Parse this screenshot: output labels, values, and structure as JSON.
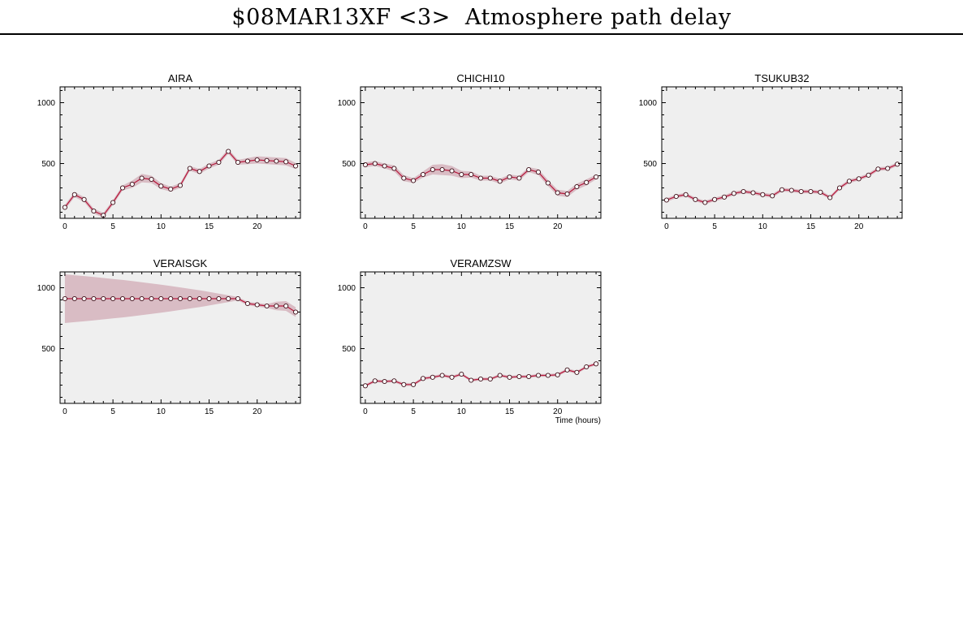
{
  "title": "$08MAR13XF <3>  Atmosphere path delay",
  "colors": {
    "background": "#ffffff",
    "plot_bg": "#efefef",
    "line": "#b8163a",
    "band": "#d9bcc4",
    "marker_fill": "#ffffff",
    "axis": "#000000"
  },
  "chart_data": [
    {
      "type": "line",
      "title": "AIRA",
      "xlabel": "",
      "ylabel": "",
      "xlim": [
        -0.5,
        24.5
      ],
      "ylim": [
        50,
        1130
      ],
      "xticks": [
        0,
        5,
        10,
        15,
        20
      ],
      "yticks": [
        500,
        1000
      ],
      "x": [
        0,
        1,
        2,
        3,
        4,
        5,
        6,
        7,
        8,
        9,
        10,
        11,
        12,
        13,
        14,
        15,
        16,
        17,
        18,
        19,
        20,
        21,
        22,
        23,
        24
      ],
      "y": [
        140,
        245,
        205,
        110,
        75,
        180,
        300,
        330,
        380,
        370,
        315,
        290,
        320,
        460,
        435,
        480,
        510,
        600,
        510,
        520,
        530,
        525,
        520,
        515,
        480
      ],
      "band": [
        20,
        20,
        20,
        20,
        20,
        20,
        20,
        30,
        35,
        30,
        25,
        20,
        20,
        20,
        20,
        20,
        20,
        20,
        20,
        25,
        30,
        30,
        30,
        30,
        25
      ]
    },
    {
      "type": "line",
      "title": "CHICHI10",
      "xlabel": "",
      "ylabel": "",
      "xlim": [
        -0.5,
        24.5
      ],
      "ylim": [
        50,
        1130
      ],
      "xticks": [
        0,
        5,
        10,
        15,
        20
      ],
      "yticks": [
        500,
        1000
      ],
      "x": [
        0,
        1,
        2,
        3,
        4,
        5,
        6,
        7,
        8,
        9,
        10,
        11,
        12,
        13,
        14,
        15,
        16,
        17,
        18,
        19,
        20,
        21,
        22,
        23,
        24
      ],
      "y": [
        490,
        500,
        480,
        460,
        380,
        360,
        410,
        450,
        450,
        440,
        410,
        410,
        380,
        380,
        355,
        390,
        380,
        450,
        430,
        340,
        260,
        250,
        310,
        345,
        390
      ],
      "band": [
        20,
        20,
        20,
        25,
        25,
        20,
        25,
        40,
        45,
        40,
        30,
        25,
        20,
        20,
        20,
        20,
        20,
        20,
        25,
        25,
        25,
        25,
        25,
        25,
        20
      ]
    },
    {
      "type": "line",
      "title": "TSUKUB32",
      "xlabel": "",
      "ylabel": "",
      "xlim": [
        -0.5,
        24.5
      ],
      "ylim": [
        50,
        1130
      ],
      "xticks": [
        0,
        5,
        10,
        15,
        20
      ],
      "yticks": [
        500,
        1000
      ],
      "x": [
        0,
        1,
        2,
        3,
        4,
        5,
        6,
        7,
        8,
        9,
        10,
        11,
        12,
        13,
        14,
        15,
        16,
        17,
        18,
        19,
        20,
        21,
        22,
        23,
        24
      ],
      "y": [
        200,
        230,
        245,
        205,
        180,
        205,
        225,
        255,
        270,
        260,
        245,
        235,
        285,
        280,
        270,
        270,
        265,
        220,
        300,
        355,
        375,
        405,
        455,
        460,
        495
      ],
      "band": [
        15,
        15,
        15,
        15,
        15,
        15,
        15,
        15,
        15,
        15,
        15,
        15,
        15,
        15,
        15,
        15,
        15,
        15,
        15,
        15,
        15,
        15,
        15,
        15,
        15
      ]
    },
    {
      "type": "line",
      "title": "VERAISGK",
      "xlabel": "",
      "ylabel": "",
      "xlim": [
        -0.5,
        24.5
      ],
      "ylim": [
        50,
        1130
      ],
      "xticks": [
        0,
        5,
        10,
        15,
        20
      ],
      "yticks": [
        500,
        1000
      ],
      "x": [
        0,
        1,
        2,
        3,
        4,
        5,
        6,
        7,
        8,
        9,
        10,
        11,
        12,
        13,
        14,
        15,
        16,
        17,
        18,
        19,
        20,
        21,
        22,
        23,
        24
      ],
      "y": [
        910,
        910,
        910,
        910,
        910,
        910,
        910,
        910,
        910,
        910,
        910,
        910,
        910,
        910,
        910,
        910,
        910,
        910,
        910,
        870,
        860,
        850,
        850,
        850,
        800
      ],
      "band": [
        200,
        193,
        186,
        178,
        170,
        162,
        154,
        145,
        135,
        125,
        115,
        104,
        93,
        81,
        69,
        56,
        42,
        28,
        14,
        15,
        15,
        15,
        35,
        40,
        40
      ]
    },
    {
      "type": "line",
      "title": "VERAMZSW",
      "xlabel": "Time (hours)",
      "ylabel": "",
      "xlim": [
        -0.5,
        24.5
      ],
      "ylim": [
        50,
        1130
      ],
      "xticks": [
        0,
        5,
        10,
        15,
        20
      ],
      "yticks": [
        500,
        1000
      ],
      "x": [
        0,
        1,
        2,
        3,
        4,
        5,
        6,
        7,
        8,
        9,
        10,
        11,
        12,
        13,
        14,
        15,
        16,
        17,
        18,
        19,
        20,
        21,
        22,
        23,
        24
      ],
      "y": [
        195,
        235,
        230,
        235,
        205,
        205,
        255,
        265,
        280,
        265,
        290,
        240,
        250,
        250,
        280,
        265,
        270,
        270,
        280,
        280,
        285,
        325,
        305,
        350,
        375
      ],
      "band": [
        12,
        12,
        12,
        12,
        12,
        12,
        12,
        12,
        12,
        12,
        12,
        12,
        12,
        12,
        12,
        12,
        12,
        12,
        12,
        12,
        12,
        12,
        12,
        12,
        12
      ]
    }
  ]
}
